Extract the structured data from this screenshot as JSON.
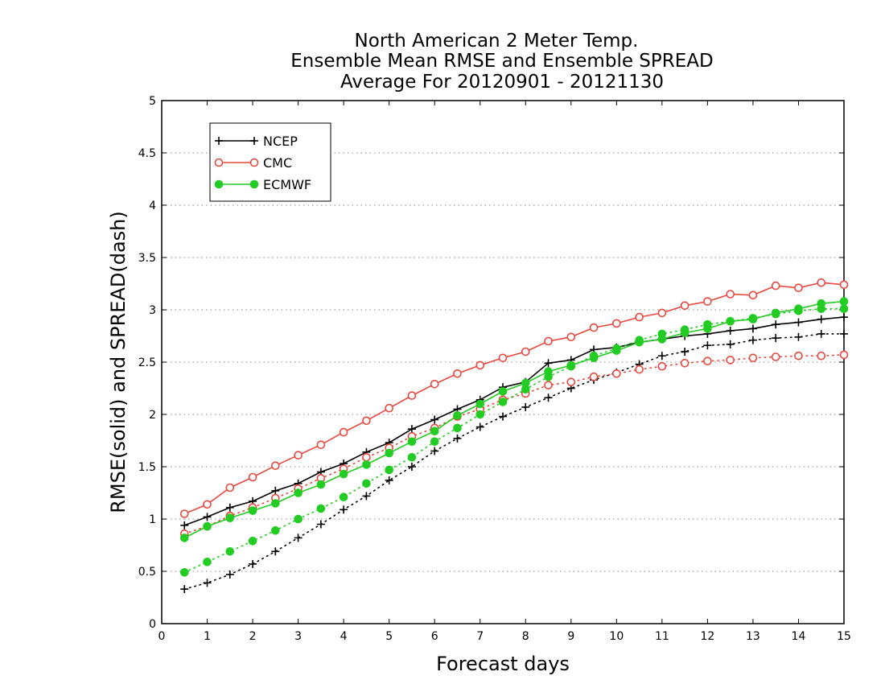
{
  "chart_data": {
    "type": "line",
    "title": [
      "North American 2 Meter Temp.",
      "Ensemble Mean RMSE and Ensemble SPREAD",
      "Average For 20120901 - 20121130"
    ],
    "xlabel": "Forecast days",
    "ylabel": "RMSE(solid) and SPREAD(dash)",
    "xlim": [
      0,
      15
    ],
    "ylim": [
      0,
      5
    ],
    "x_ticks": [
      "0",
      "1",
      "2",
      "3",
      "4",
      "5",
      "6",
      "7",
      "8",
      "9",
      "10",
      "11",
      "12",
      "13",
      "14",
      "15"
    ],
    "y_ticks": [
      "0",
      "0.5",
      "1",
      "1.5",
      "2",
      "2.5",
      "3",
      "3.5",
      "4",
      "4.5",
      "5"
    ],
    "grid": "dotted horizontal",
    "legend_position": "top-left",
    "x": [
      0.5,
      1,
      1.5,
      2,
      2.5,
      3,
      3.5,
      4,
      4.5,
      5,
      5.5,
      6,
      6.5,
      7,
      7.5,
      8,
      8.5,
      9,
      9.5,
      10,
      10.5,
      11,
      11.5,
      12,
      12.5,
      13,
      13.5,
      14,
      14.5,
      15
    ],
    "series": [
      {
        "name": "NCEP",
        "color": "#000000",
        "marker": "plus",
        "rmse": [
          0.94,
          1.02,
          1.11,
          1.17,
          1.27,
          1.34,
          1.45,
          1.53,
          1.64,
          1.73,
          1.86,
          1.95,
          2.05,
          2.14,
          2.26,
          2.31,
          2.49,
          2.52,
          2.62,
          2.64,
          2.69,
          2.72,
          2.75,
          2.77,
          2.8,
          2.82,
          2.86,
          2.88,
          2.91,
          2.93
        ],
        "spread": [
          0.33,
          0.39,
          0.47,
          0.57,
          0.69,
          0.82,
          0.95,
          1.09,
          1.22,
          1.37,
          1.5,
          1.65,
          1.77,
          1.88,
          1.98,
          2.07,
          2.16,
          2.25,
          2.33,
          2.4,
          2.48,
          2.56,
          2.6,
          2.66,
          2.67,
          2.71,
          2.73,
          2.74,
          2.77,
          2.77
        ]
      },
      {
        "name": "CMC",
        "color": "#e8483e",
        "marker": "circle",
        "rmse": [
          1.05,
          1.14,
          1.3,
          1.4,
          1.51,
          1.61,
          1.71,
          1.83,
          1.94,
          2.06,
          2.18,
          2.29,
          2.39,
          2.47,
          2.54,
          2.6,
          2.7,
          2.74,
          2.83,
          2.87,
          2.93,
          2.97,
          3.04,
          3.08,
          3.15,
          3.14,
          3.23,
          3.21,
          3.26,
          3.24
        ],
        "spread": [
          0.86,
          0.93,
          1.03,
          1.11,
          1.2,
          1.29,
          1.39,
          1.48,
          1.59,
          1.68,
          1.79,
          1.87,
          1.98,
          2.05,
          2.14,
          2.2,
          2.28,
          2.31,
          2.36,
          2.39,
          2.43,
          2.46,
          2.49,
          2.51,
          2.52,
          2.54,
          2.55,
          2.56,
          2.56,
          2.57
        ]
      },
      {
        "name": "ECMWF",
        "color": "#22cc22",
        "marker": "dot",
        "rmse": [
          0.82,
          0.93,
          1.01,
          1.08,
          1.15,
          1.25,
          1.33,
          1.43,
          1.52,
          1.63,
          1.74,
          1.84,
          1.99,
          2.1,
          2.22,
          2.3,
          2.41,
          2.47,
          2.54,
          2.61,
          2.69,
          2.72,
          2.78,
          2.82,
          2.89,
          2.91,
          2.97,
          3.01,
          3.06,
          3.08
        ],
        "spread": [
          0.49,
          0.59,
          0.69,
          0.79,
          0.89,
          1.0,
          1.1,
          1.21,
          1.34,
          1.47,
          1.59,
          1.74,
          1.87,
          2.0,
          2.12,
          2.24,
          2.36,
          2.46,
          2.56,
          2.63,
          2.71,
          2.77,
          2.81,
          2.86,
          2.89,
          2.92,
          2.96,
          2.99,
          3.01,
          3.01
        ]
      }
    ]
  }
}
